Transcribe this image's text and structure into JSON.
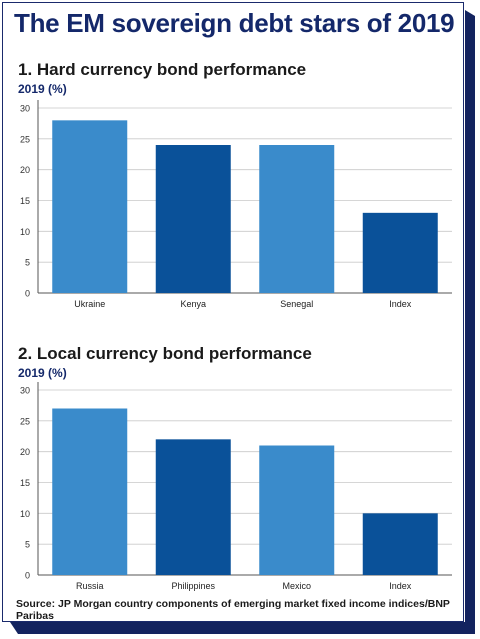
{
  "title": "The EM sovereign debt stars of 2019",
  "source": "Source: JP Morgan country components of emerging market fixed income indices/BNP Paribas",
  "colors": {
    "light": "#3a8bcb",
    "dark": "#0a5199",
    "frame": "#14286a"
  },
  "chart_data": [
    {
      "type": "bar",
      "title": "1. Hard currency bond performance",
      "unit": "2019 (%)",
      "categories": [
        "Ukraine",
        "Kenya",
        "Senegal",
        "Index"
      ],
      "values": [
        28,
        24,
        24,
        13
      ],
      "bar_colors": [
        "light",
        "dark",
        "light",
        "dark"
      ],
      "ylim": [
        0,
        30
      ],
      "yticks": [
        "0",
        "5",
        "10",
        "15",
        "20",
        "25",
        "30"
      ],
      "grid": true
    },
    {
      "type": "bar",
      "title": "2. Local currency bond performance",
      "unit": "2019 (%)",
      "categories": [
        "Russia",
        "Philippines",
        "Mexico",
        "Index"
      ],
      "values": [
        27,
        22,
        21,
        10
      ],
      "bar_colors": [
        "light",
        "dark",
        "light",
        "dark"
      ],
      "ylim": [
        0,
        30
      ],
      "yticks": [
        "0",
        "5",
        "10",
        "15",
        "20",
        "25",
        "30"
      ],
      "grid": true
    }
  ]
}
